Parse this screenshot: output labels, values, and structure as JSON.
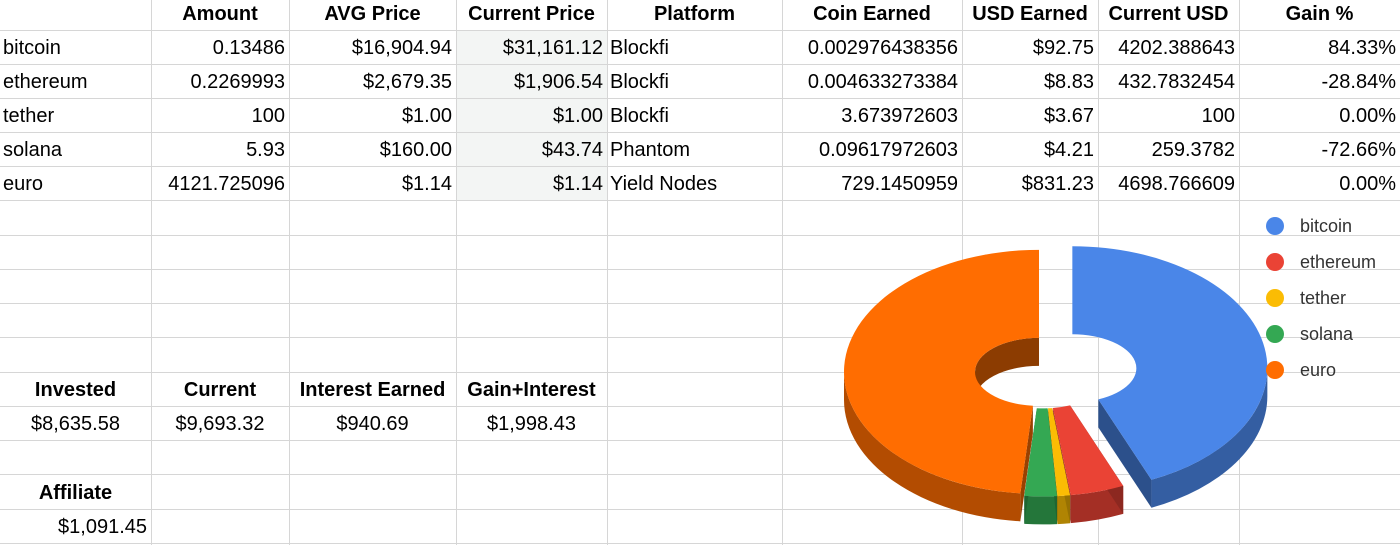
{
  "headers": [
    "Amount",
    "AVG Price",
    "Current Price",
    "Platform",
    "Coin Earned",
    "USD Earned",
    "Current USD",
    "Gain %"
  ],
  "rows": [
    {
      "name": "bitcoin",
      "amount": "0.13486",
      "avg_price": "$16,904.94",
      "current_price": "$31,161.12",
      "platform": "Blockfi",
      "coin_earned": "0.002976438356",
      "usd_earned": "$92.75",
      "current_usd": "4202.388643",
      "gain": "84.33%"
    },
    {
      "name": "ethereum",
      "amount": "0.2269993",
      "avg_price": "$2,679.35",
      "current_price": "$1,906.54",
      "platform": "Blockfi",
      "coin_earned": "0.004633273384",
      "usd_earned": "$8.83",
      "current_usd": "432.7832454",
      "gain": "-28.84%"
    },
    {
      "name": "tether",
      "amount": "100",
      "avg_price": "$1.00",
      "current_price": "$1.00",
      "platform": "Blockfi",
      "coin_earned": "3.673972603",
      "usd_earned": "$3.67",
      "current_usd": "100",
      "gain": "0.00%"
    },
    {
      "name": "solana",
      "amount": "5.93",
      "avg_price": "$160.00",
      "current_price": "$43.74",
      "platform": "Phantom",
      "coin_earned": "0.09617972603",
      "usd_earned": "$4.21",
      "current_usd": "259.3782",
      "gain": "-72.66%"
    },
    {
      "name": "euro",
      "amount": "4121.725096",
      "avg_price": "$1.14",
      "current_price": "$1.14",
      "platform": "Yield Nodes",
      "coin_earned": "729.1450959",
      "usd_earned": "$831.23",
      "current_usd": "4698.766609",
      "gain": "0.00%"
    }
  ],
  "summary": {
    "labels": [
      "Invested",
      "Current",
      "Interest Earned",
      "Gain+Interest"
    ],
    "values": [
      "$8,635.58",
      "$9,693.32",
      "$940.69",
      "$1,998.43"
    ]
  },
  "affiliate": {
    "label": "Affiliate",
    "value": "$1,091.45"
  },
  "chart_data": {
    "type": "pie",
    "style": "3d-exploded-donut",
    "legend_position": "right",
    "series": [
      {
        "name": "bitcoin",
        "value": 4202.388643,
        "color": "#4a86e8"
      },
      {
        "name": "ethereum",
        "value": 432.7832454,
        "color": "#ea4335"
      },
      {
        "name": "tether",
        "value": 100,
        "color": "#fbbc04"
      },
      {
        "name": "solana",
        "value": 259.3782,
        "color": "#34a853"
      },
      {
        "name": "euro",
        "value": 4698.766609,
        "color": "#ff6d01"
      }
    ]
  }
}
